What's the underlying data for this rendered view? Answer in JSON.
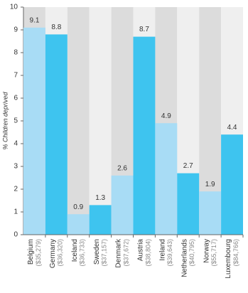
{
  "chart_data": {
    "type": "bar",
    "y_label": "% Children deprived",
    "categories": [
      "Belgium",
      "Germany",
      "Iceland",
      "Sweden",
      "Denmark",
      "Austria",
      "Ireland",
      "Netherlands",
      "Norway",
      "Luxembourg"
    ],
    "category_notes": [
      "($35,279)",
      "($36,320)",
      "($36,733)",
      "($37,157)",
      "($37,672)",
      "($38,804)",
      "($39,643)",
      "($40,795)",
      "($55,717)",
      "($84,766)"
    ],
    "values": [
      9.1,
      8.8,
      0.9,
      1.3,
      2.6,
      8.7,
      4.9,
      2.7,
      1.9,
      4.4
    ],
    "colors": [
      "#a8dcf5",
      "#3ec4ef",
      "#a8dcf5",
      "#3ec4ef",
      "#a8dcf5",
      "#3ec4ef",
      "#a8dcf5",
      "#3ec4ef",
      "#a8dcf5",
      "#3ec4ef"
    ],
    "ylim": [
      0,
      10
    ],
    "yticks": [
      0,
      1,
      2,
      3,
      4,
      5,
      6,
      7,
      8,
      9,
      10
    ]
  }
}
